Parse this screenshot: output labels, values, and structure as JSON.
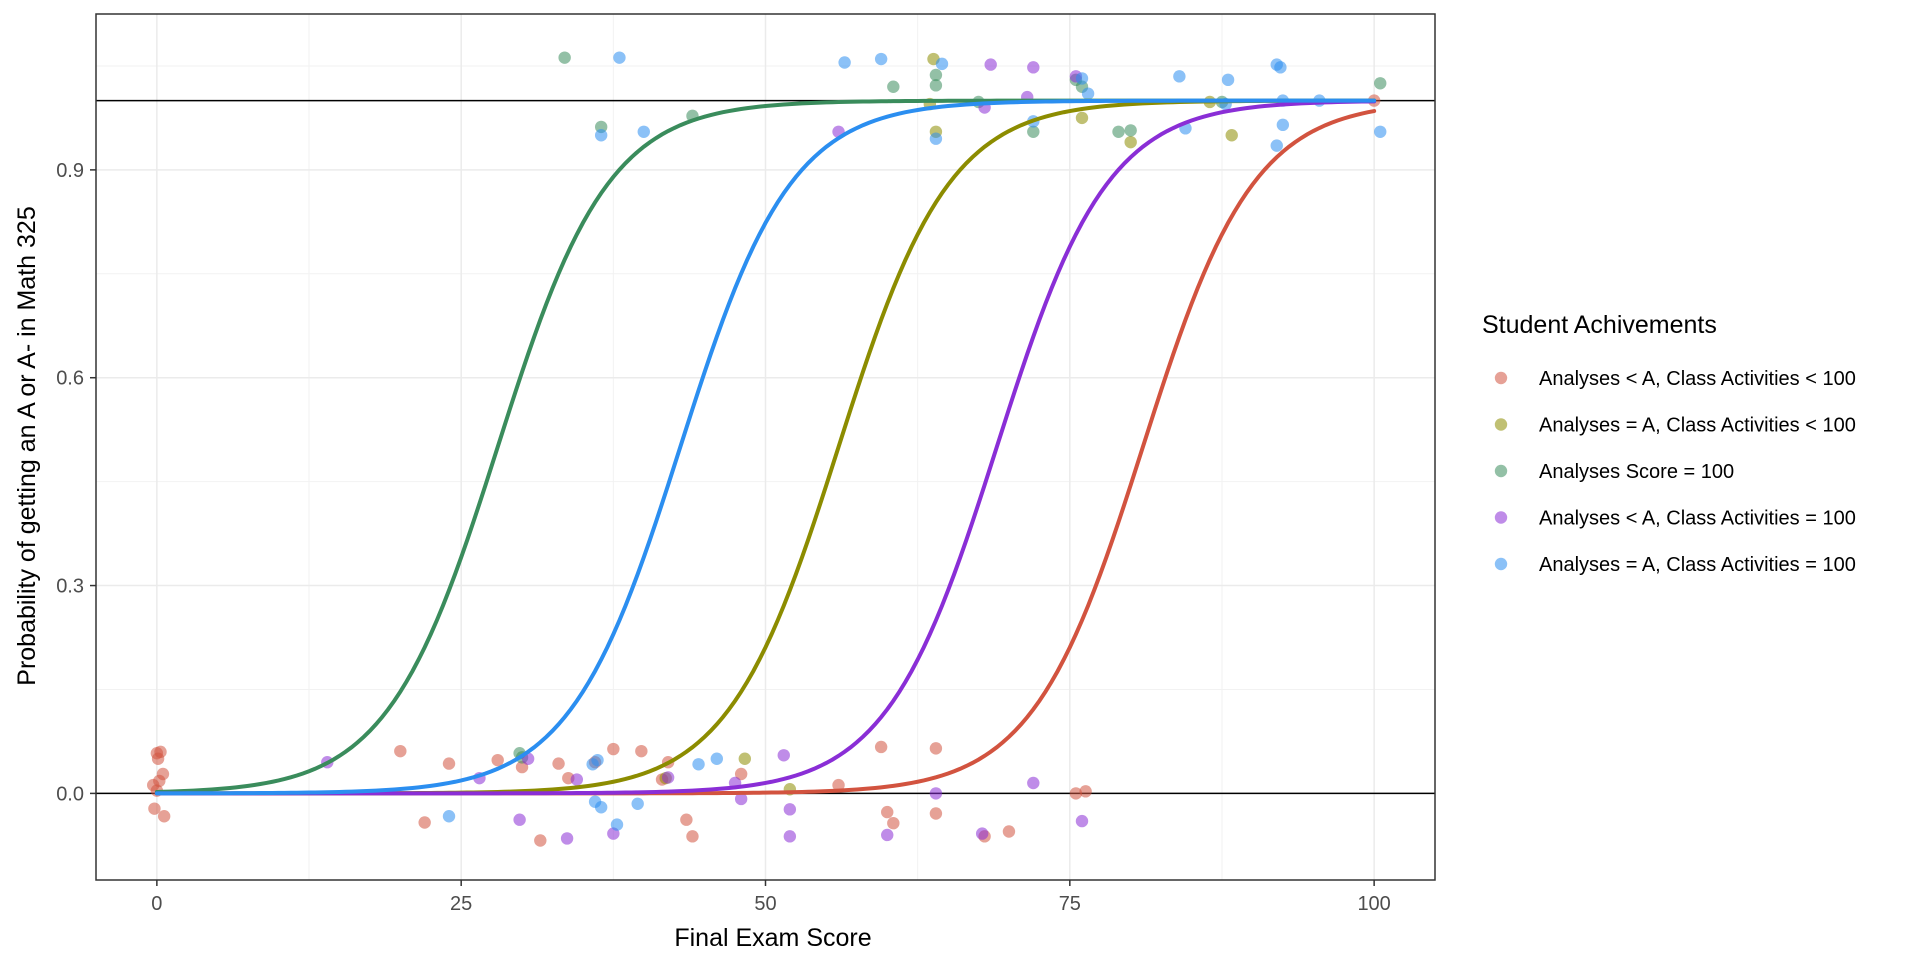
{
  "chart_data": {
    "type": "scatter",
    "title": "",
    "xlabel": "Final Exam Score",
    "ylabel": "Probability of getting an A or A- in Math 325",
    "xlim": [
      -5,
      105
    ],
    "ylim": [
      -0.125,
      1.125
    ],
    "x_ticks": [
      0,
      25,
      50,
      75,
      100
    ],
    "x_tick_labels": [
      "0",
      "25",
      "50",
      "75",
      "100"
    ],
    "y_ticks": [
      0.0,
      0.3,
      0.6,
      0.9
    ],
    "y_tick_labels": [
      "0.0",
      "0.3",
      "0.6",
      "0.9"
    ],
    "reference_lines_y": [
      0,
      1
    ],
    "grid": true,
    "legend": {
      "title": "Student Achivements",
      "placement": "right"
    },
    "series": [
      {
        "name": "Analyses < A, Class Activities < 100",
        "color": "#d2533f",
        "curve": {
          "midpoint": 81,
          "slope": 0.22
        },
        "points": [
          [
            -0.3,
            0.012
          ],
          [
            0.0,
            0.058
          ],
          [
            0.3,
            0.06
          ],
          [
            0.1,
            0.05
          ],
          [
            0.5,
            0.028
          ],
          [
            0.2,
            0.018
          ],
          [
            -0.2,
            -0.022
          ],
          [
            0.6,
            -0.033
          ],
          [
            0.0,
            0.004
          ],
          [
            20,
            0.061
          ],
          [
            22,
            -0.042
          ],
          [
            24,
            0.043
          ],
          [
            28,
            0.048
          ],
          [
            30,
            0.038
          ],
          [
            31.5,
            -0.068
          ],
          [
            33,
            0.043
          ],
          [
            33.8,
            0.022
          ],
          [
            36,
            0.045
          ],
          [
            37.5,
            0.064
          ],
          [
            39.8,
            0.061
          ],
          [
            41.5,
            0.02
          ],
          [
            42,
            0.045
          ],
          [
            43.5,
            -0.038
          ],
          [
            44,
            -0.062
          ],
          [
            48,
            0.028
          ],
          [
            56,
            0.012
          ],
          [
            59.5,
            0.067
          ],
          [
            60,
            -0.027
          ],
          [
            60.5,
            -0.043
          ],
          [
            64,
            0.065
          ],
          [
            64,
            -0.029
          ],
          [
            68,
            -0.062
          ],
          [
            70,
            -0.055
          ],
          [
            75.5,
            0.0
          ],
          [
            76.3,
            0.003
          ],
          [
            100,
            1.0
          ]
        ]
      },
      {
        "name": "Analyses = A, Class Activities < 100",
        "color": "#8c8c00",
        "curve": {
          "midpoint": 56,
          "slope": 0.22
        },
        "points": [
          [
            41.8,
            0.022
          ],
          [
            48.3,
            0.05
          ],
          [
            52,
            0.006
          ],
          [
            63.8,
            1.06
          ],
          [
            64,
            0.955
          ],
          [
            63.5,
            0.995
          ],
          [
            76,
            0.975
          ],
          [
            80,
            0.94
          ],
          [
            86.5,
            0.998
          ],
          [
            88.3,
            0.95
          ]
        ]
      },
      {
        "name": "Analyses Score = 100",
        "color": "#3a8c5c",
        "curve": {
          "midpoint": 28,
          "slope": 0.22
        },
        "points": [
          [
            29.8,
            0.058
          ],
          [
            30,
            0.052
          ],
          [
            33.5,
            1.062
          ],
          [
            36.5,
            0.962
          ],
          [
            44,
            0.978
          ],
          [
            60.5,
            1.02
          ],
          [
            64,
            1.037
          ],
          [
            64,
            1.022
          ],
          [
            67.5,
            0.998
          ],
          [
            72,
            0.955
          ],
          [
            75.5,
            1.03
          ],
          [
            76,
            1.02
          ],
          [
            79,
            0.955
          ],
          [
            80,
            0.957
          ],
          [
            87.5,
            0.998
          ],
          [
            100.5,
            1.025
          ]
        ]
      },
      {
        "name": "Analyses < A, Class Activities = 100",
        "color": "#8a2ed6",
        "curve": {
          "midpoint": 69,
          "slope": 0.22
        },
        "points": [
          [
            14,
            0.045
          ],
          [
            26.5,
            0.022
          ],
          [
            30.5,
            0.05
          ],
          [
            29.8,
            -0.038
          ],
          [
            33.7,
            -0.065
          ],
          [
            34.5,
            0.02
          ],
          [
            37.5,
            -0.058
          ],
          [
            42,
            0.023
          ],
          [
            47.5,
            0.015
          ],
          [
            48,
            -0.008
          ],
          [
            51.5,
            0.055
          ],
          [
            52,
            -0.023
          ],
          [
            52,
            -0.062
          ],
          [
            60,
            -0.06
          ],
          [
            64,
            0.0
          ],
          [
            67.8,
            -0.058
          ],
          [
            68,
            0.99
          ],
          [
            68.5,
            1.052
          ],
          [
            71.5,
            1.005
          ],
          [
            72,
            1.048
          ],
          [
            72,
            0.015
          ],
          [
            75.5,
            1.035
          ],
          [
            76,
            -0.04
          ],
          [
            56,
            0.955
          ]
        ]
      },
      {
        "name": "Analyses = A, Class Activities = 100",
        "color": "#2b8ef0",
        "curve": {
          "midpoint": 43,
          "slope": 0.22
        },
        "points": [
          [
            24,
            -0.033
          ],
          [
            36,
            -0.012
          ],
          [
            36.5,
            -0.02
          ],
          [
            37.8,
            -0.045
          ],
          [
            39.5,
            -0.015
          ],
          [
            38,
            1.062
          ],
          [
            36.5,
            0.95
          ],
          [
            40,
            0.955
          ],
          [
            35.8,
            0.042
          ],
          [
            36.2,
            0.048
          ],
          [
            44.5,
            0.042
          ],
          [
            46,
            0.05
          ],
          [
            56.5,
            1.055
          ],
          [
            59.5,
            1.06
          ],
          [
            64,
            0.945
          ],
          [
            64.5,
            1.053
          ],
          [
            72,
            0.97
          ],
          [
            76,
            1.032
          ],
          [
            76.5,
            1.01
          ],
          [
            84,
            1.035
          ],
          [
            84.5,
            0.96
          ],
          [
            87.8,
            0.995
          ],
          [
            88,
            1.03
          ],
          [
            92,
            1.052
          ],
          [
            92.3,
            1.048
          ],
          [
            92,
            0.935
          ],
          [
            92.5,
            0.965
          ],
          [
            92.5,
            1.0
          ],
          [
            95.5,
            1.0
          ],
          [
            100.5,
            0.955
          ]
        ]
      }
    ]
  }
}
